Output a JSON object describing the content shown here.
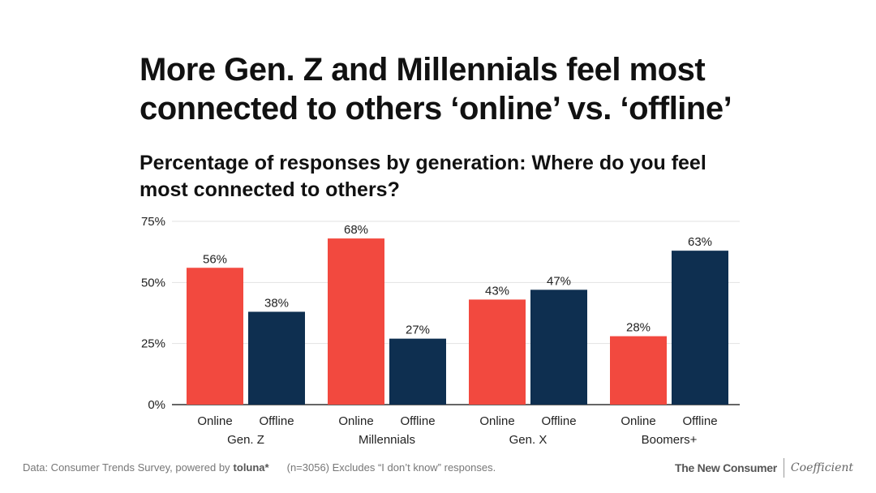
{
  "title_lines": [
    "More Gen. Z and Millennials feel most",
    "connected to others ‘online’ vs. ‘offline’"
  ],
  "subtitle_lines": [
    "Percentage of responses by generation: Where do you feel",
    "most connected to others?"
  ],
  "colors": {
    "online": "#F2493F",
    "offline": "#0E2F50",
    "grid": "#E2E2E2",
    "axis": "#333333",
    "text": "#222222"
  },
  "chart_data": {
    "type": "bar",
    "title": "More Gen. Z and Millennials feel most connected to others ‘online’ vs. ‘offline’",
    "subtitle": "Percentage of responses by generation: Where do you feel most connected to others?",
    "categories": [
      "Gen. Z",
      "Millennials",
      "Gen. X",
      "Boomers+"
    ],
    "series": [
      {
        "name": "Online",
        "values": [
          56,
          68,
          43,
          28
        ],
        "labels": [
          "56%",
          "68%",
          "43%",
          "28%"
        ]
      },
      {
        "name": "Offline",
        "values": [
          38,
          27,
          47,
          63
        ],
        "labels": [
          "38%",
          "27%",
          "47%",
          "63%"
        ]
      }
    ],
    "ylim": [
      0,
      75
    ],
    "yticks": [
      0,
      25,
      50,
      75
    ],
    "ytick_labels": [
      "0%",
      "25%",
      "50%",
      "75%"
    ],
    "xlabel": "",
    "ylabel": "",
    "grid": true
  },
  "footer": {
    "source_prefix": "Data: Consumer Trends Survey, powered by",
    "source_brand": "toluna*",
    "note": "(n=3056) Excludes “I don’t know” responses.",
    "logo_left": "The New Consumer",
    "logo_right": "Coefficient"
  }
}
